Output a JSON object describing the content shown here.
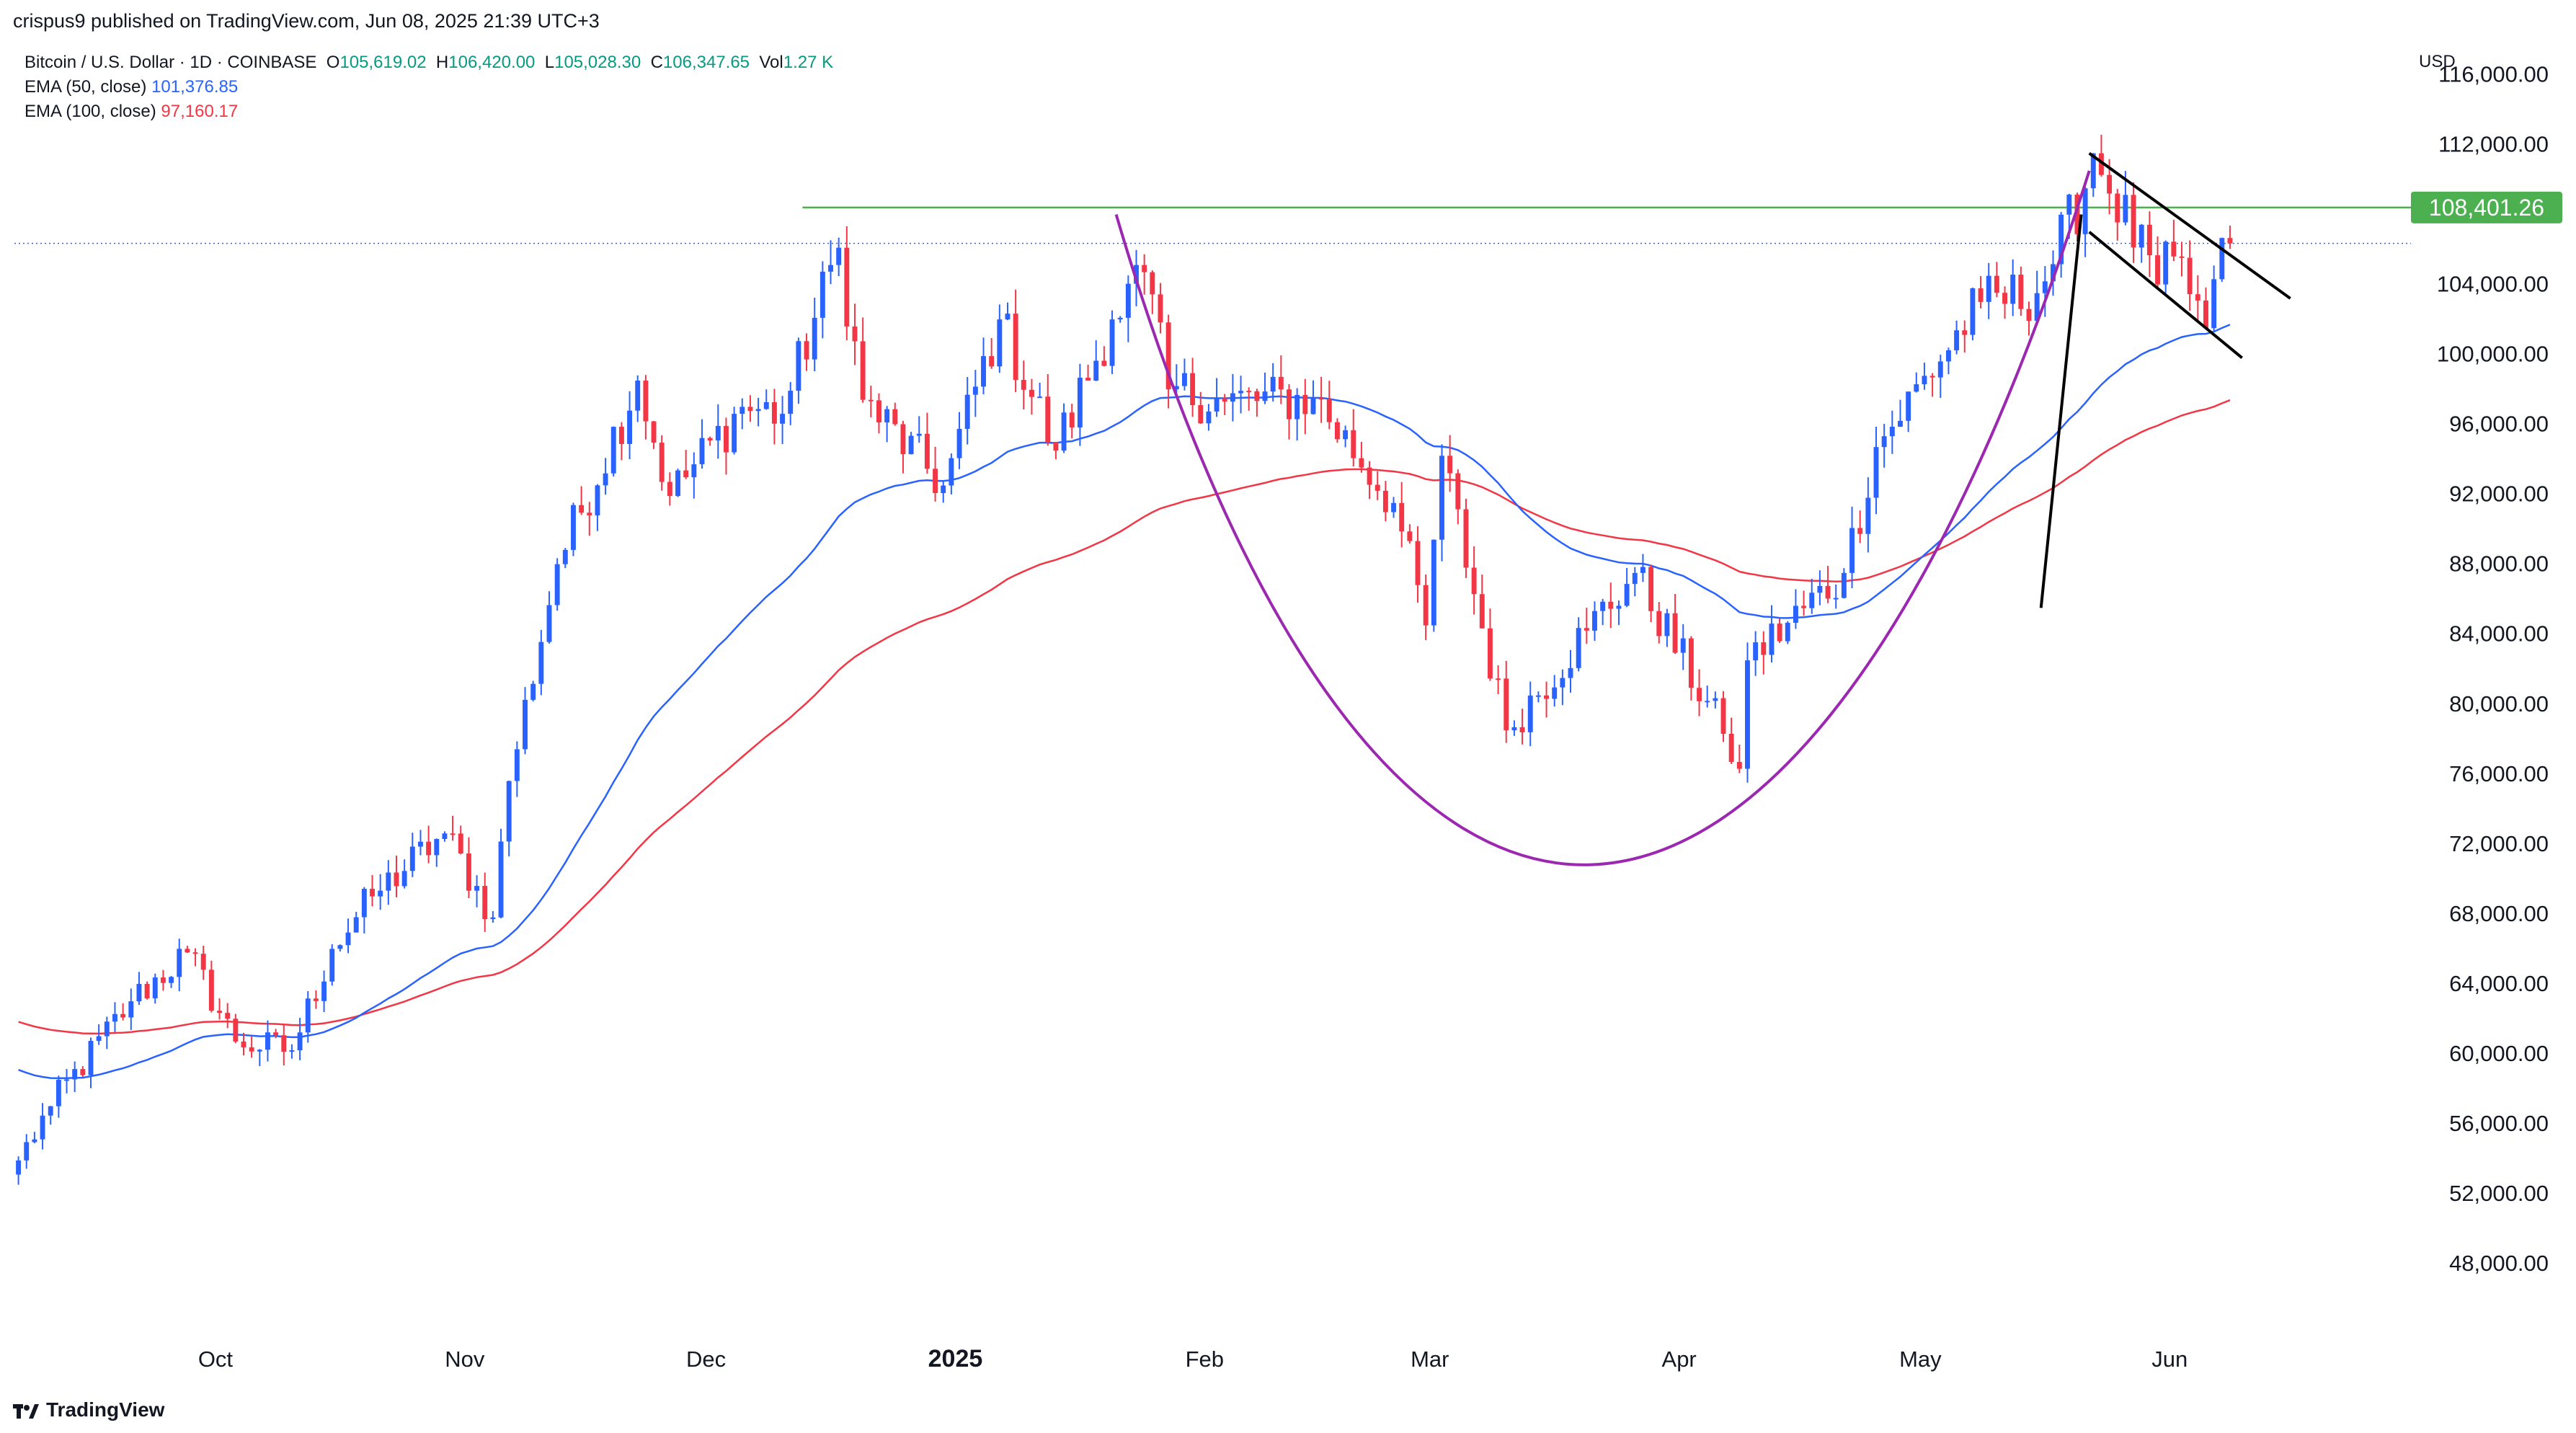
{
  "header": {
    "published": "crispus9 published on TradingView.com, Jun 08, 2025 21:39 UTC+3",
    "symbol": "Bitcoin / U.S. Dollar · 1D · COINBASE",
    "o_label": "O",
    "o_value": "105,619.02",
    "h_label": "H",
    "h_value": "106,420.00",
    "l_label": "L",
    "l_value": "105,028.30",
    "c_label": "C",
    "c_value": "106,347.65",
    "vol_label": "Vol",
    "vol_value": "1.27 K",
    "ema50_label": "EMA (50, close)",
    "ema50_value": "101,376.85",
    "ema100_label": "EMA (100, close)",
    "ema100_value": "97,160.17"
  },
  "axis": {
    "currency": "USD"
  },
  "footer": {
    "brand": "TradingView"
  },
  "colors": {
    "up": "#2962ff",
    "down": "#f23645",
    "ema50": "#2962ff",
    "ema100": "#f23645",
    "resistance": "#4caf50",
    "cup": "#9c27b0",
    "pattern": "#000000",
    "price_label_bg": "#4caf50"
  },
  "chart_data": {
    "type": "candlestick",
    "y_ticks": [
      "116,000.00",
      "112,000.00",
      "104,000.00",
      "100,000.00",
      "96,000.00",
      "92,000.00",
      "88,000.00",
      "84,000.00",
      "80,000.00",
      "76,000.00",
      "72,000.00",
      "68,000.00",
      "64,000.00",
      "60,000.00",
      "56,000.00",
      "52,000.00",
      "48,000.00"
    ],
    "y_tick_values": [
      116000,
      112000,
      104000,
      100000,
      96000,
      92000,
      88000,
      84000,
      80000,
      76000,
      72000,
      68000,
      64000,
      60000,
      56000,
      52000,
      48000
    ],
    "ylim": [
      44000,
      118000
    ],
    "x_labels": [
      {
        "label": "Oct",
        "date": "2024-10-01",
        "bold": false
      },
      {
        "label": "Nov",
        "date": "2024-11-01",
        "bold": false
      },
      {
        "label": "Dec",
        "date": "2024-12-01",
        "bold": false
      },
      {
        "label": "2025",
        "date": "2025-01-01",
        "bold": true
      },
      {
        "label": "Feb",
        "date": "2025-02-01",
        "bold": false
      },
      {
        "label": "Mar",
        "date": "2025-03-01",
        "bold": false
      },
      {
        "label": "Apr",
        "date": "2025-04-01",
        "bold": false
      },
      {
        "label": "May",
        "date": "2025-05-01",
        "bold": false
      },
      {
        "label": "Jun",
        "date": "2025-06-01",
        "bold": false
      }
    ],
    "x_range": [
      "2024-09-06",
      "2025-07-01"
    ],
    "start_date": "2024-09-06",
    "resistance_level": 108401.26,
    "resistance_label": "108,401.26",
    "last_price": 106347.65,
    "close_keypoints": [
      [
        "2024-09-06",
        53900
      ],
      [
        "2024-09-10",
        57000
      ],
      [
        "2024-09-20",
        63000
      ],
      [
        "2024-09-27",
        65800
      ],
      [
        "2024-10-03",
        60700
      ],
      [
        "2024-10-10",
        60200
      ],
      [
        "2024-10-15",
        66000
      ],
      [
        "2024-10-20",
        69000
      ],
      [
        "2024-10-29",
        72600
      ],
      [
        "2024-11-04",
        67800
      ],
      [
        "2024-11-06",
        75600
      ],
      [
        "2024-11-12",
        88000
      ],
      [
        "2024-11-22",
        98500
      ],
      [
        "2024-11-26",
        91900
      ],
      [
        "2024-12-05",
        97000
      ],
      [
        "2024-12-10",
        96600
      ],
      [
        "2024-12-17",
        106100
      ],
      [
        "2024-12-20",
        97400
      ],
      [
        "2024-12-30",
        92500
      ],
      [
        "2025-01-06",
        102000
      ],
      [
        "2025-01-13",
        94500
      ],
      [
        "2025-01-20",
        102000
      ],
      [
        "2025-01-24",
        104700
      ],
      [
        "2025-01-27",
        98000
      ],
      [
        "2025-02-03",
        97300
      ],
      [
        "2025-02-14",
        97500
      ],
      [
        "2025-02-24",
        91500
      ],
      [
        "2025-02-28",
        84500
      ],
      [
        "2025-03-02",
        94200
      ],
      [
        "2025-03-10",
        78500
      ],
      [
        "2025-03-20",
        84200
      ],
      [
        "2025-03-26",
        87500
      ],
      [
        "2025-04-06",
        78300
      ],
      [
        "2025-04-08",
        76300
      ],
      [
        "2025-04-09",
        82500
      ],
      [
        "2025-04-21",
        87500
      ],
      [
        "2025-04-25",
        94700
      ],
      [
        "2025-05-08",
        103000
      ],
      [
        "2025-05-15",
        103500
      ],
      [
        "2025-05-21",
        109500
      ],
      [
        "2025-05-22",
        111500
      ],
      [
        "2025-05-30",
        104000
      ],
      [
        "2025-06-01",
        105600
      ],
      [
        "2025-06-05",
        101500
      ],
      [
        "2025-06-06",
        104300
      ],
      [
        "2025-06-08",
        106347.65
      ]
    ]
  }
}
